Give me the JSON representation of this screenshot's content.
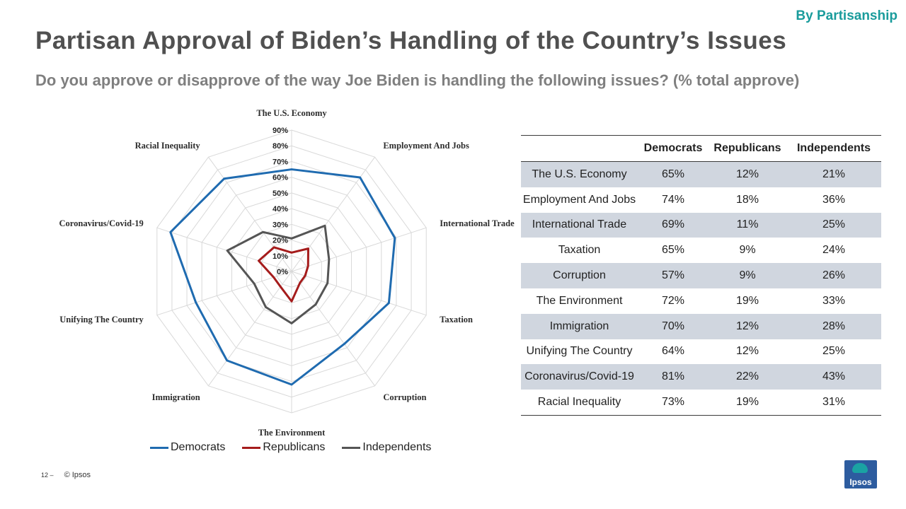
{
  "header": {
    "tag": "By Partisanship",
    "title": "Partisan Approval of Biden’s Handling of the Country’s Issues",
    "subtitle": "Do you approve or disapprove of the way Joe Biden is handling the following issues? (% total approve)"
  },
  "chart_data": {
    "type": "radar",
    "categories": [
      "The U.S. Economy",
      "Employment And Jobs",
      "International Trade",
      "Taxation",
      "Corruption",
      "The Environment",
      "Immigration",
      "Unifying The Country",
      "Coronavirus/Covid-19",
      "Racial Inequality"
    ],
    "series": [
      {
        "name": "Democrats",
        "color": "#1f6bb0",
        "values": [
          65,
          74,
          69,
          65,
          57,
          72,
          70,
          64,
          81,
          73
        ]
      },
      {
        "name": "Republicans",
        "color": "#a51c1c",
        "values": [
          12,
          18,
          11,
          9,
          9,
          19,
          12,
          12,
          22,
          19
        ]
      },
      {
        "name": "Independents",
        "color": "#555555",
        "values": [
          21,
          36,
          25,
          24,
          26,
          33,
          28,
          25,
          43,
          31
        ]
      }
    ],
    "ticks": [
      "0%",
      "10%",
      "20%",
      "30%",
      "40%",
      "50%",
      "60%",
      "70%",
      "80%",
      "90%"
    ],
    "rlim": [
      0,
      90
    ],
    "legend_position": "bottom"
  },
  "table": {
    "headers": [
      "",
      "Democrats",
      "Republicans",
      "Independents"
    ],
    "rows": [
      {
        "issue": "The U.S. Economy",
        "dem": "65%",
        "rep": "12%",
        "ind": "21%"
      },
      {
        "issue": "Employment And Jobs",
        "dem": "74%",
        "rep": "18%",
        "ind": "36%"
      },
      {
        "issue": "International  Trade",
        "dem": "69%",
        "rep": "11%",
        "ind": "25%"
      },
      {
        "issue": "Taxation",
        "dem": "65%",
        "rep": "9%",
        "ind": "24%"
      },
      {
        "issue": "Corruption",
        "dem": "57%",
        "rep": "9%",
        "ind": "26%"
      },
      {
        "issue": "The Environment",
        "dem": "72%",
        "rep": "19%",
        "ind": "33%"
      },
      {
        "issue": "Immigration",
        "dem": "70%",
        "rep": "12%",
        "ind": "28%"
      },
      {
        "issue": "Unifying The Country",
        "dem": "64%",
        "rep": "12%",
        "ind": "25%"
      },
      {
        "issue": "Coronavirus/Covid-19",
        "dem": "81%",
        "rep": "22%",
        "ind": "43%"
      },
      {
        "issue": "Racial Inequality",
        "dem": "73%",
        "rep": "19%",
        "ind": "31%"
      }
    ]
  },
  "footer": {
    "page": "12 –",
    "copyright": "© Ipsos",
    "logo_text": "Ipsos"
  }
}
